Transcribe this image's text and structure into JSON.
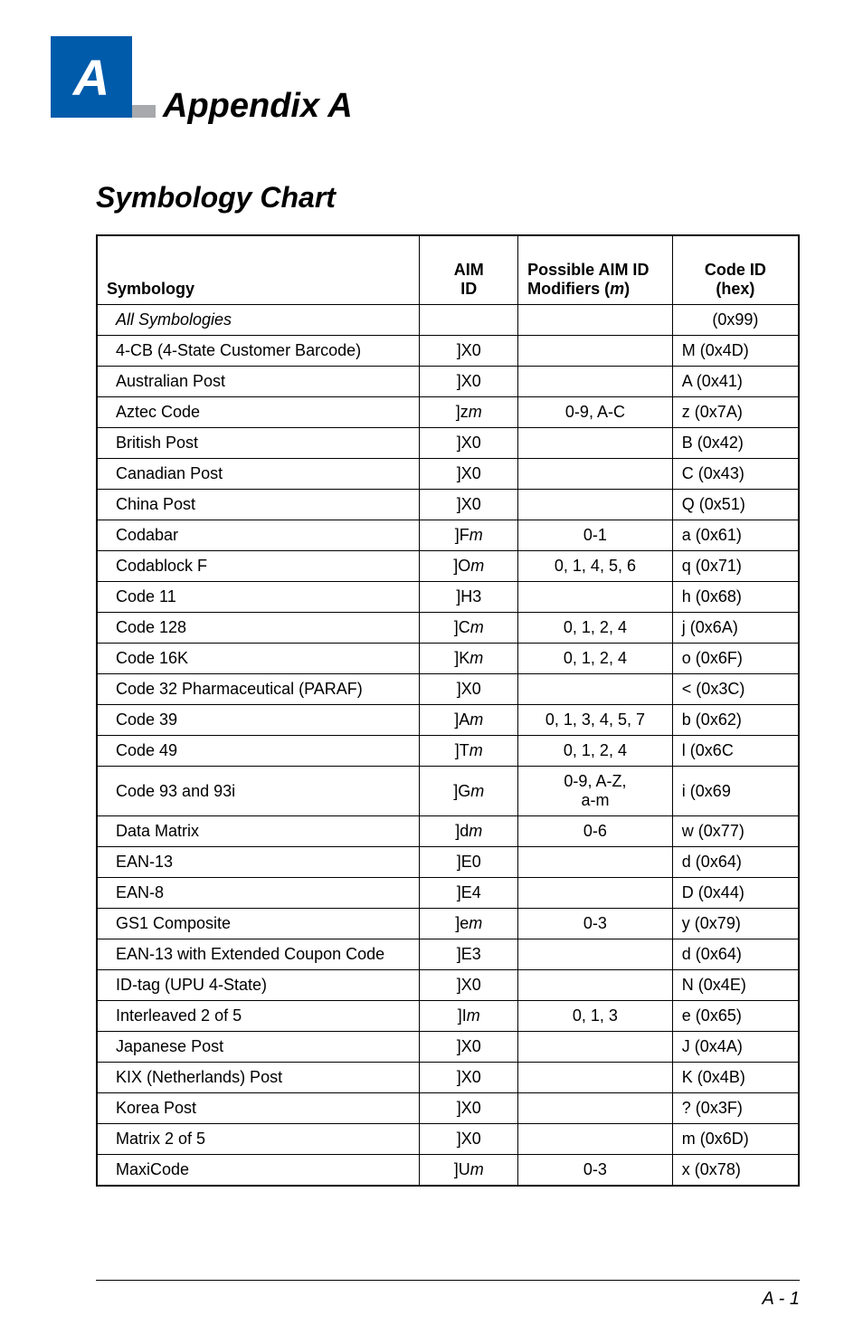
{
  "header": {
    "letter": "A",
    "appendix_title": "Appendix A",
    "section_title": "Symbology Chart"
  },
  "colors": {
    "blue_box": "#005bab",
    "gray_accent": "#a7a9ac",
    "text": "#000000",
    "background": "#ffffff",
    "border": "#000000"
  },
  "table": {
    "headers": {
      "symbology": "Symbology",
      "aim_id": "AIM\nID",
      "modifiers_prefix": "Possible AIM ID\nModifiers (",
      "modifiers_m": "m",
      "modifiers_suffix": ")",
      "code_id": "Code ID\n(hex)"
    },
    "rows": [
      {
        "symbology": "All Symbologies",
        "all_sym": true,
        "aim": "",
        "mod": "",
        "code": "(0x99)"
      },
      {
        "symbology": "4-CB (4-State Customer Barcode)",
        "aim": "]X0",
        "mod": "",
        "code": "M (0x4D)"
      },
      {
        "symbology": "Australian Post",
        "aim": "]X0",
        "mod": "",
        "code": "A (0x41)"
      },
      {
        "symbology": "Aztec Code",
        "aim_prefix": "]z",
        "aim_m": "m",
        "mod": "0-9, A-C",
        "code": "z (0x7A)"
      },
      {
        "symbology": "British Post",
        "aim": "]X0",
        "mod": "",
        "code": "B (0x42)"
      },
      {
        "symbology": "Canadian Post",
        "aim": "]X0",
        "mod": "",
        "code": "C (0x43)"
      },
      {
        "symbology": "China Post",
        "aim": "]X0",
        "mod": "",
        "code": "Q (0x51)"
      },
      {
        "symbology": "Codabar",
        "aim_prefix": "]F",
        "aim_m": "m",
        "mod": "0-1",
        "code": "a (0x61)"
      },
      {
        "symbology": "Codablock F",
        "aim_prefix": "]O",
        "aim_m": "m",
        "mod": "0, 1, 4, 5, 6",
        "code": "q (0x71)"
      },
      {
        "symbology": "Code 11",
        "aim": "]H3",
        "mod": "",
        "code": "h (0x68)"
      },
      {
        "symbology": "Code 128",
        "aim_prefix": "]C",
        "aim_m": "m",
        "mod": "0, 1, 2, 4",
        "code": "j  (0x6A)"
      },
      {
        "symbology": "Code 16K",
        "aim_prefix": "]K",
        "aim_m": "m",
        "mod": "0, 1, 2, 4",
        "code": "o (0x6F)"
      },
      {
        "symbology": "Code 32 Pharmaceutical (PARAF)",
        "aim": "]X0",
        "mod": "",
        "code": "< (0x3C)"
      },
      {
        "symbology": "Code 39",
        "aim_prefix": "]A",
        "aim_m": "m",
        "mod": "0, 1, 3, 4, 5, 7",
        "code": "b (0x62)"
      },
      {
        "symbology": "Code 49",
        "aim_prefix": "]T",
        "aim_m": "m",
        "mod": "0, 1, 2, 4",
        "code": "l (0x6C"
      },
      {
        "symbology": "Code 93 and 93i",
        "aim_prefix": "]G",
        "aim_m": "m",
        "mod": "0-9, A-Z,\na-m",
        "code": "i (0x69"
      },
      {
        "symbology": "Data Matrix",
        "aim_prefix": "]d",
        "aim_m": "m",
        "mod": "0-6",
        "code": "w (0x77)"
      },
      {
        "symbology": "EAN-13",
        "aim": "]E0",
        "mod": "",
        "code": "d (0x64)"
      },
      {
        "symbology": "EAN-8",
        "aim": "]E4",
        "mod": "",
        "code": "D (0x44)"
      },
      {
        "symbology": "GS1 Composite",
        "aim_prefix": "]e",
        "aim_m": "m",
        "mod": "0-3",
        "code": "y (0x79)"
      },
      {
        "symbology": "EAN-13 with Extended Coupon Code",
        "aim": "]E3",
        "mod": "",
        "code": "d (0x64)"
      },
      {
        "symbology": "ID-tag (UPU 4-State)",
        "aim": "]X0",
        "mod": "",
        "code": "N (0x4E)"
      },
      {
        "symbology": "Interleaved 2 of 5",
        "aim_prefix": "]I",
        "aim_m": "m",
        "mod": "0, 1, 3",
        "code": "e (0x65)"
      },
      {
        "symbology": "Japanese Post",
        "aim": "]X0",
        "mod": "",
        "code": "J (0x4A)"
      },
      {
        "symbology": "KIX (Netherlands) Post",
        "aim": "]X0",
        "mod": "",
        "code": "K (0x4B)"
      },
      {
        "symbology": "Korea Post",
        "aim": "]X0",
        "mod": "",
        "code": "? (0x3F)"
      },
      {
        "symbology": "Matrix 2 of 5",
        "aim": "]X0",
        "mod": "",
        "code": "m (0x6D)"
      },
      {
        "symbology": "MaxiCode",
        "aim_prefix": "]U",
        "aim_m": "m",
        "mod": "0-3",
        "code": "x (0x78)"
      }
    ]
  },
  "footer": {
    "page_number": "A - 1"
  }
}
